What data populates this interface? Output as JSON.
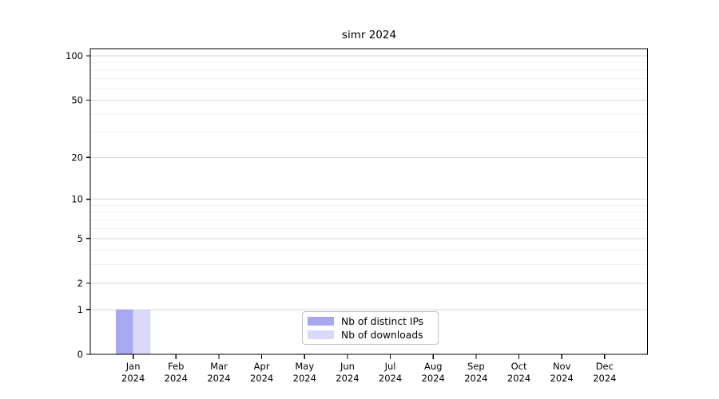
{
  "chart_data": {
    "type": "bar",
    "title": "simr 2024",
    "categories": [
      "Jan 2024",
      "Feb 2024",
      "Mar 2024",
      "Apr 2024",
      "May 2024",
      "Jun 2024",
      "Jul 2024",
      "Aug 2024",
      "Sep 2024",
      "Oct 2024",
      "Nov 2024",
      "Dec 2024"
    ],
    "series": [
      {
        "name": "Nb of distinct IPs",
        "color": "#a8a8f2",
        "values": [
          1,
          0,
          0,
          0,
          0,
          0,
          0,
          0,
          0,
          0,
          0,
          0
        ]
      },
      {
        "name": "Nb of downloads",
        "color": "#dadaf8",
        "values": [
          1,
          0,
          0,
          0,
          0,
          0,
          0,
          0,
          0,
          0,
          0,
          0
        ]
      }
    ],
    "yscale": "log1p",
    "ylim": [
      0,
      112
    ],
    "ytick_values": [
      0,
      1,
      2,
      5,
      10,
      20,
      50,
      100
    ],
    "ytick_labels": [
      "0",
      "1",
      "2",
      "5",
      "10",
      "20",
      "50",
      "100"
    ],
    "minor_grid_values": [
      3,
      4,
      6,
      7,
      8,
      9,
      30,
      40,
      60,
      70,
      80,
      90
    ],
    "grid": "horizontal",
    "legend_position": "bottom-center",
    "colors": {
      "axis": "#000000",
      "major_grid": "#d6d6d6",
      "minor_grid": "#f0f0f0",
      "background": "#ffffff"
    }
  }
}
